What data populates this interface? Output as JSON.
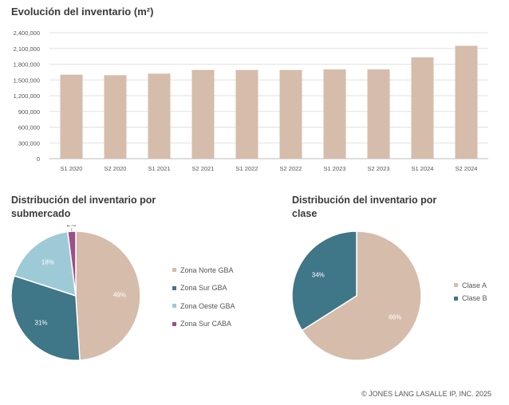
{
  "colors": {
    "bar": "#d6bcab",
    "axis_text": "#555555",
    "gridline": "#e2e2e2",
    "pie_label": "#ffffff"
  },
  "bar_title": "Evolución del inventario (m²)",
  "pie1_title": "Distribución del inventario por submercado",
  "pie2_title": "Distribución del inventario por clase",
  "copyright": "© JONES LANG LASALLE IP, INC. 2025",
  "chart_data": [
    {
      "type": "bar",
      "title": "Evolución del inventario (m²)",
      "categories": [
        "S1 2020",
        "S2 2020",
        "S1 2021",
        "S2 2021",
        "S1 2022",
        "S2 2022",
        "S1 2023",
        "S2 2023",
        "S1 2024",
        "S2 2024"
      ],
      "values": [
        1600000,
        1590000,
        1620000,
        1690000,
        1690000,
        1690000,
        1700000,
        1700000,
        1930000,
        2150000
      ],
      "ylim": [
        0,
        2400000
      ],
      "yticks": [
        0,
        300000,
        600000,
        900000,
        1200000,
        1500000,
        1800000,
        2100000,
        2400000
      ],
      "ytick_labels": [
        "0",
        "300,000",
        "600,000",
        "900,000",
        "1,200,000",
        "1,500,000",
        "1,800,000",
        "2,100,000",
        "2,400,000"
      ],
      "grid": true,
      "color": "#d6bcab"
    },
    {
      "type": "pie",
      "title": "Distribución del inventario por submercado",
      "labels": [
        "Zona Norte GBA",
        "Zona Sur GBA",
        "Zona Oeste GBA",
        "Zona Sur CABA"
      ],
      "values": [
        49,
        31,
        18,
        2
      ],
      "value_labels": [
        "49%",
        "31%",
        "18%",
        "2%"
      ],
      "colors": [
        "#d6bcab",
        "#3f7688",
        "#9ecad8",
        "#9c4f89"
      ],
      "legend": "right"
    },
    {
      "type": "pie",
      "title": "Distribución del inventario por clase",
      "labels": [
        "Clase A",
        "Clase B"
      ],
      "values": [
        66,
        34
      ],
      "value_labels": [
        "66%",
        "34%"
      ],
      "colors": [
        "#d6bcab",
        "#3f7688"
      ],
      "legend": "right"
    }
  ]
}
